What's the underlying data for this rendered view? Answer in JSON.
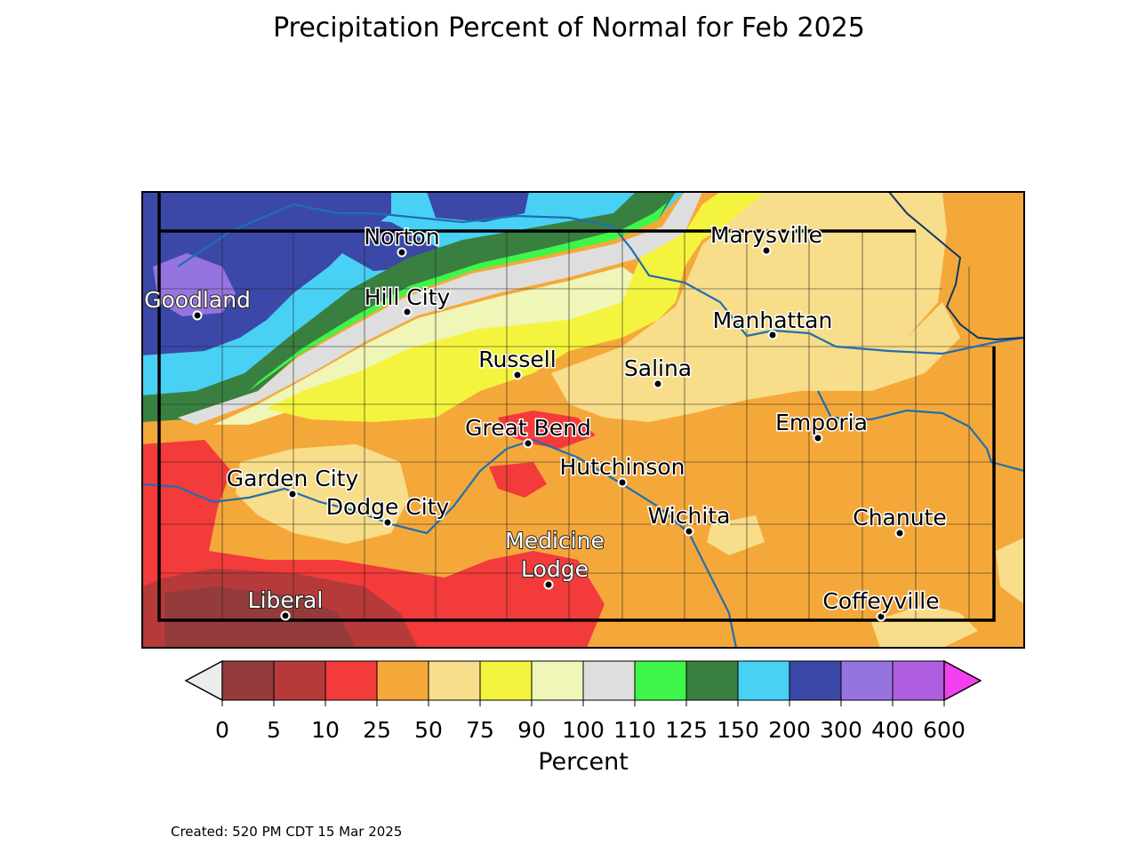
{
  "title": "Precipitation Percent of Normal for Feb 2025",
  "colorbar": {
    "label": "Percent",
    "ticks": [
      "0",
      "5",
      "10",
      "25",
      "50",
      "75",
      "90",
      "100",
      "110",
      "125",
      "150",
      "200",
      "300",
      "400",
      "600"
    ],
    "under_color": "#ececec",
    "over_color": "#f33ff0",
    "colors": [
      "#943b3b",
      "#b73a3a",
      "#f33b3b",
      "#f5a83a",
      "#f8dd8a",
      "#f4f43e",
      "#f0f5b8",
      "#dedede",
      "#3ef64a",
      "#398040",
      "#48d1f5",
      "#3b48a8",
      "#9674e0",
      "#b05ee0"
    ]
  },
  "cities": [
    {
      "name": "Norton",
      "style": "black"
    },
    {
      "name": "Marysville",
      "style": "black"
    },
    {
      "name": "Goodland",
      "style": "white"
    },
    {
      "name": "Hill City",
      "style": "black"
    },
    {
      "name": "Manhattan",
      "style": "black"
    },
    {
      "name": "Russell",
      "style": "black"
    },
    {
      "name": "Salina",
      "style": "black"
    },
    {
      "name": "Great Bend",
      "style": "black"
    },
    {
      "name": "Emporia",
      "style": "black"
    },
    {
      "name": "Hutchinson",
      "style": "black"
    },
    {
      "name": "Garden City",
      "style": "black"
    },
    {
      "name": "Dodge City",
      "style": "black"
    },
    {
      "name": "Wichita",
      "style": "black"
    },
    {
      "name": "Chanute",
      "style": "black"
    },
    {
      "name": "Medicine Lodge",
      "style": "white"
    },
    {
      "name": "Coffeyville",
      "style": "black"
    },
    {
      "name": "Liberal",
      "style": "white"
    }
  ],
  "created": "Created: 520 PM CDT 15 Mar 2025"
}
